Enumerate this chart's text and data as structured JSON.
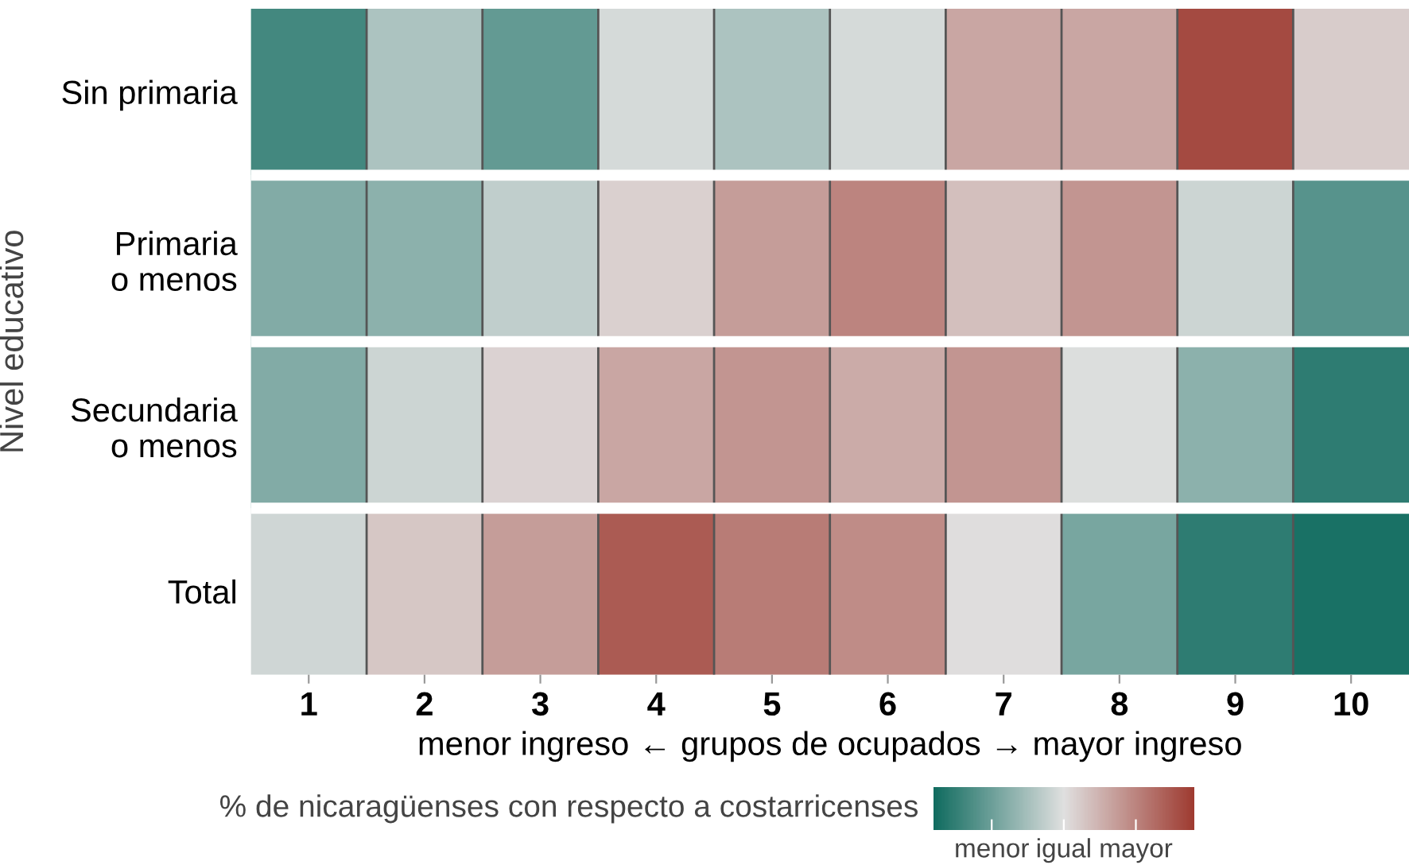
{
  "chart_data": {
    "type": "heatmap",
    "xlabel": "menor ingreso ← grupos de ocupados → mayor ingreso",
    "ylabel": "Nivel educativo",
    "clabel": "% de nicaragüenses con respecto a costarricenses",
    "categories": [
      "1",
      "2",
      "3",
      "4",
      "5",
      "6",
      "7",
      "8",
      "9",
      "10"
    ],
    "y_categories": [
      "Sin primaria",
      "Primaria\no menos",
      "Secundaria\no menos",
      "Total"
    ],
    "cells": [
      [
        -0.75,
        -0.25,
        -0.6,
        -0.05,
        -0.25,
        -0.05,
        0.35,
        0.35,
        0.9,
        0.12
      ],
      [
        -0.45,
        -0.4,
        -0.15,
        0.1,
        0.4,
        0.55,
        0.2,
        0.45,
        -0.1,
        -0.65
      ],
      [
        -0.45,
        -0.1,
        0.08,
        0.35,
        0.45,
        0.32,
        0.45,
        -0.02,
        -0.4,
        -0.85
      ],
      [
        -0.08,
        0.15,
        0.4,
        0.8,
        0.6,
        0.5,
        0.02,
        -0.5,
        -0.85,
        -0.95
      ]
    ],
    "clim": [
      -1,
      1
    ],
    "cticks": [
      {
        "value": -0.55,
        "label": "menor"
      },
      {
        "value": 0,
        "label": "igual"
      },
      {
        "value": 0.55,
        "label": "mayor"
      }
    ]
  }
}
